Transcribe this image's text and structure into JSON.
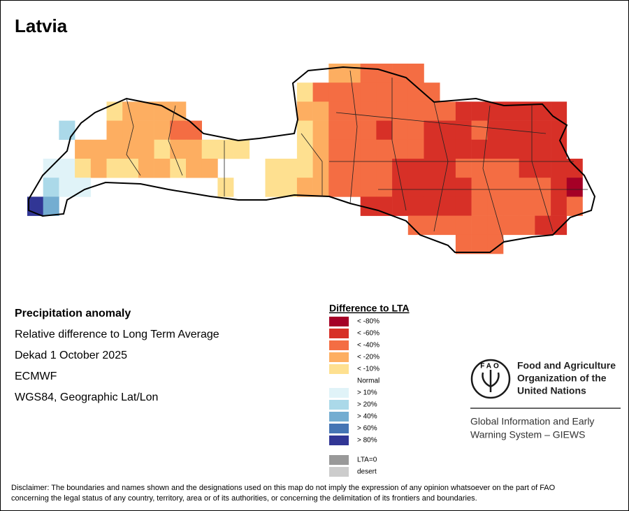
{
  "title": "Latvia",
  "panel": {
    "heading": "Precipitation anomaly",
    "lines": [
      "Relative difference to Long Term Average",
      "Dekad 1 October 2025",
      "ECMWF",
      "WGS84, Geographic Lat/Lon"
    ]
  },
  "legend": {
    "title": "Difference to LTA",
    "items": [
      {
        "label": "< -80%",
        "color": "#a50026"
      },
      {
        "label": "< -60%",
        "color": "#d73027"
      },
      {
        "label": "< -40%",
        "color": "#f46d43"
      },
      {
        "label": "< -20%",
        "color": "#fdae61"
      },
      {
        "label": "< -10%",
        "color": "#fee090"
      },
      {
        "label": "Normal",
        "color": null
      },
      {
        "label": "> 10%",
        "color": "#e0f3f8"
      },
      {
        "label": "> 20%",
        "color": "#abd9e9"
      },
      {
        "label": "> 40%",
        "color": "#74add1"
      },
      {
        "label": "> 60%",
        "color": "#4575b4"
      },
      {
        "label": "> 80%",
        "color": "#313695"
      }
    ],
    "extra": [
      {
        "label": "LTA=0",
        "color": "#999999"
      },
      {
        "label": "desert",
        "color": "#cccccc"
      }
    ]
  },
  "logo": {
    "letters": "FAO"
  },
  "organization": [
    "Food and Agriculture",
    "Organization of the",
    "United Nations"
  ],
  "system": [
    "Global Information and Early",
    "Warning System – GIEWS"
  ],
  "disclaimer": [
    "Disclaimer: The boundaries and names shown and the designations used on this map do not imply the expression of any opinion whatsoever on the part of FAO",
    "concerning the legal status of any country, territory, area or of its authorities, or concerning the delimitation of its frontiers and boundaries."
  ]
}
